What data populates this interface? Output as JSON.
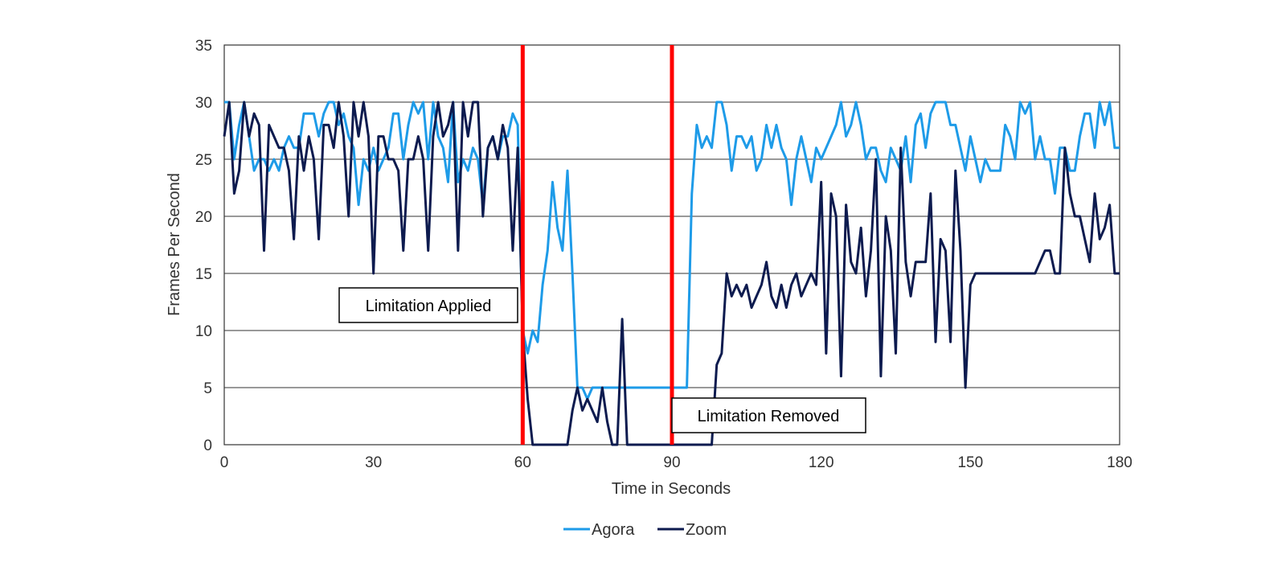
{
  "chart_data": {
    "type": "line",
    "title": "",
    "xlabel": "Time in Seconds",
    "ylabel": "Frames Per Second",
    "xlim": [
      0,
      180
    ],
    "ylim": [
      0,
      35
    ],
    "x_ticks": [
      "0",
      "30",
      "60",
      "90",
      "120",
      "150",
      "180"
    ],
    "y_ticks": [
      "0",
      "5",
      "10",
      "15",
      "20",
      "25",
      "30",
      "35"
    ],
    "grid": "horizontal",
    "legend_position": "bottom",
    "series": [
      {
        "name": "Agora",
        "color": "#1E9BE8",
        "x": [
          0,
          1,
          2,
          3,
          4,
          5,
          6,
          7,
          8,
          9,
          10,
          11,
          12,
          13,
          14,
          15,
          16,
          17,
          18,
          19,
          20,
          21,
          22,
          23,
          24,
          25,
          26,
          27,
          28,
          29,
          30,
          31,
          32,
          33,
          34,
          35,
          36,
          37,
          38,
          39,
          40,
          41,
          42,
          43,
          44,
          45,
          46,
          47,
          48,
          49,
          50,
          51,
          52,
          53,
          54,
          55,
          56,
          57,
          58,
          59,
          60,
          61,
          62,
          63,
          64,
          65,
          66,
          67,
          68,
          69,
          70,
          71,
          72,
          73,
          74,
          75,
          76,
          77,
          78,
          79,
          80,
          81,
          82,
          83,
          84,
          85,
          86,
          87,
          88,
          89,
          90,
          91,
          92,
          93,
          94,
          95,
          96,
          97,
          98,
          99,
          100,
          101,
          102,
          103,
          104,
          105,
          106,
          107,
          108,
          109,
          110,
          111,
          112,
          113,
          114,
          115,
          116,
          117,
          118,
          119,
          120,
          121,
          122,
          123,
          124,
          125,
          126,
          127,
          128,
          129,
          130,
          131,
          132,
          133,
          134,
          135,
          136,
          137,
          138,
          139,
          140,
          141,
          142,
          143,
          144,
          145,
          146,
          147,
          148,
          149,
          150,
          151,
          152,
          153,
          154,
          155,
          156,
          157,
          158,
          159,
          160,
          161,
          162,
          163,
          164,
          165,
          166,
          167,
          168,
          169,
          170,
          171,
          172,
          173,
          174,
          175,
          176,
          177,
          178,
          179,
          180
        ],
        "values": [
          30,
          30,
          25,
          28,
          30,
          27,
          24,
          25,
          25,
          24,
          25,
          24,
          26,
          27,
          26,
          26,
          29,
          29,
          29,
          27,
          29,
          30,
          30,
          28,
          29,
          27,
          26,
          21,
          25,
          24,
          26,
          24,
          25,
          26,
          29,
          29,
          25,
          28,
          30,
          29,
          30,
          25,
          30,
          27,
          26,
          23,
          30,
          23,
          25,
          24,
          26,
          25,
          21,
          26,
          27,
          25,
          27,
          27,
          29,
          28,
          10,
          8,
          10,
          9,
          14,
          17,
          23,
          19,
          17,
          24,
          15,
          5,
          5,
          4,
          5,
          5,
          5,
          5,
          5,
          5,
          5,
          5,
          5,
          5,
          5,
          5,
          5,
          5,
          5,
          5,
          5,
          5,
          5,
          5,
          22,
          28,
          26,
          27,
          26,
          30,
          30,
          28,
          24,
          27,
          27,
          26,
          27,
          24,
          25,
          28,
          26,
          28,
          26,
          25,
          21,
          25,
          27,
          25,
          23,
          26,
          25,
          26,
          27,
          28,
          30,
          27,
          28,
          30,
          28,
          25,
          26,
          26,
          24,
          23,
          26,
          25,
          24,
          27,
          23,
          28,
          29,
          26,
          29,
          30,
          30,
          30,
          28,
          28,
          26,
          24,
          27,
          25,
          23,
          25,
          24,
          24,
          24,
          28,
          27,
          25,
          30,
          29,
          30,
          25,
          27,
          25,
          25,
          22,
          26,
          26,
          24,
          24,
          27,
          29,
          29,
          26,
          30,
          28,
          30,
          26,
          26
        ]
      },
      {
        "name": "Zoom",
        "color": "#0D1B4F",
        "x": [
          0,
          1,
          2,
          3,
          4,
          5,
          6,
          7,
          8,
          9,
          10,
          11,
          12,
          13,
          14,
          15,
          16,
          17,
          18,
          19,
          20,
          21,
          22,
          23,
          24,
          25,
          26,
          27,
          28,
          29,
          30,
          31,
          32,
          33,
          34,
          35,
          36,
          37,
          38,
          39,
          40,
          41,
          42,
          43,
          44,
          45,
          46,
          47,
          48,
          49,
          50,
          51,
          52,
          53,
          54,
          55,
          56,
          57,
          58,
          59,
          60,
          61,
          62,
          63,
          64,
          65,
          66,
          67,
          68,
          69,
          70,
          71,
          72,
          73,
          74,
          75,
          76,
          77,
          78,
          79,
          80,
          81,
          82,
          83,
          84,
          85,
          86,
          87,
          88,
          89,
          90,
          91,
          92,
          93,
          94,
          95,
          96,
          97,
          98,
          99,
          100,
          101,
          102,
          103,
          104,
          105,
          106,
          107,
          108,
          109,
          110,
          111,
          112,
          113,
          114,
          115,
          116,
          117,
          118,
          119,
          120,
          121,
          122,
          123,
          124,
          125,
          126,
          127,
          128,
          129,
          130,
          131,
          132,
          133,
          134,
          135,
          136,
          137,
          138,
          139,
          140,
          141,
          142,
          143,
          144,
          145,
          146,
          147,
          148,
          149,
          150,
          151,
          152,
          153,
          154,
          155,
          156,
          157,
          158,
          159,
          160,
          161,
          162,
          163,
          164,
          165,
          166,
          167,
          168,
          169,
          170,
          171,
          172,
          173,
          174,
          175,
          176,
          177,
          178,
          179,
          180
        ],
        "values": [
          27,
          30,
          22,
          24,
          30,
          27,
          29,
          28,
          17,
          28,
          27,
          26,
          26,
          24,
          18,
          27,
          24,
          27,
          25,
          18,
          28,
          28,
          26,
          30,
          27,
          20,
          30,
          27,
          30,
          27,
          15,
          27,
          27,
          25,
          25,
          24,
          17,
          25,
          25,
          27,
          25,
          17,
          27,
          30,
          27,
          28,
          30,
          17,
          30,
          27,
          30,
          30,
          20,
          26,
          27,
          25,
          28,
          26,
          17,
          26,
          10,
          4,
          0,
          0,
          0,
          0,
          0,
          0,
          0,
          0,
          3,
          5,
          3,
          4,
          3,
          2,
          5,
          2,
          0,
          0,
          11,
          0,
          0,
          0,
          0,
          0,
          0,
          0,
          0,
          0,
          0,
          0,
          0,
          0,
          0,
          0,
          0,
          0,
          0,
          7,
          8,
          15,
          13,
          14,
          13,
          14,
          12,
          13,
          14,
          16,
          13,
          12,
          14,
          12,
          14,
          15,
          13,
          14,
          15,
          14,
          23,
          8,
          22,
          20,
          6,
          21,
          16,
          15,
          19,
          13,
          17,
          25,
          6,
          20,
          17,
          8,
          26,
          16,
          13,
          16,
          16,
          16,
          22,
          9,
          18,
          17,
          9,
          24,
          17,
          5,
          14,
          15,
          15,
          15,
          15,
          15,
          15,
          15,
          15,
          15,
          15,
          15,
          15,
          15,
          16,
          17,
          17,
          15,
          15,
          26,
          22,
          20,
          20,
          18,
          16,
          22,
          18,
          19,
          21,
          15,
          15
        ]
      }
    ],
    "vertical_markers": [
      {
        "x": 60,
        "color": "#FF0000"
      },
      {
        "x": 90,
        "color": "#FF0000"
      }
    ],
    "annotations": [
      {
        "text": "Limitation Applied"
      },
      {
        "text": "Limitation Removed"
      }
    ]
  }
}
